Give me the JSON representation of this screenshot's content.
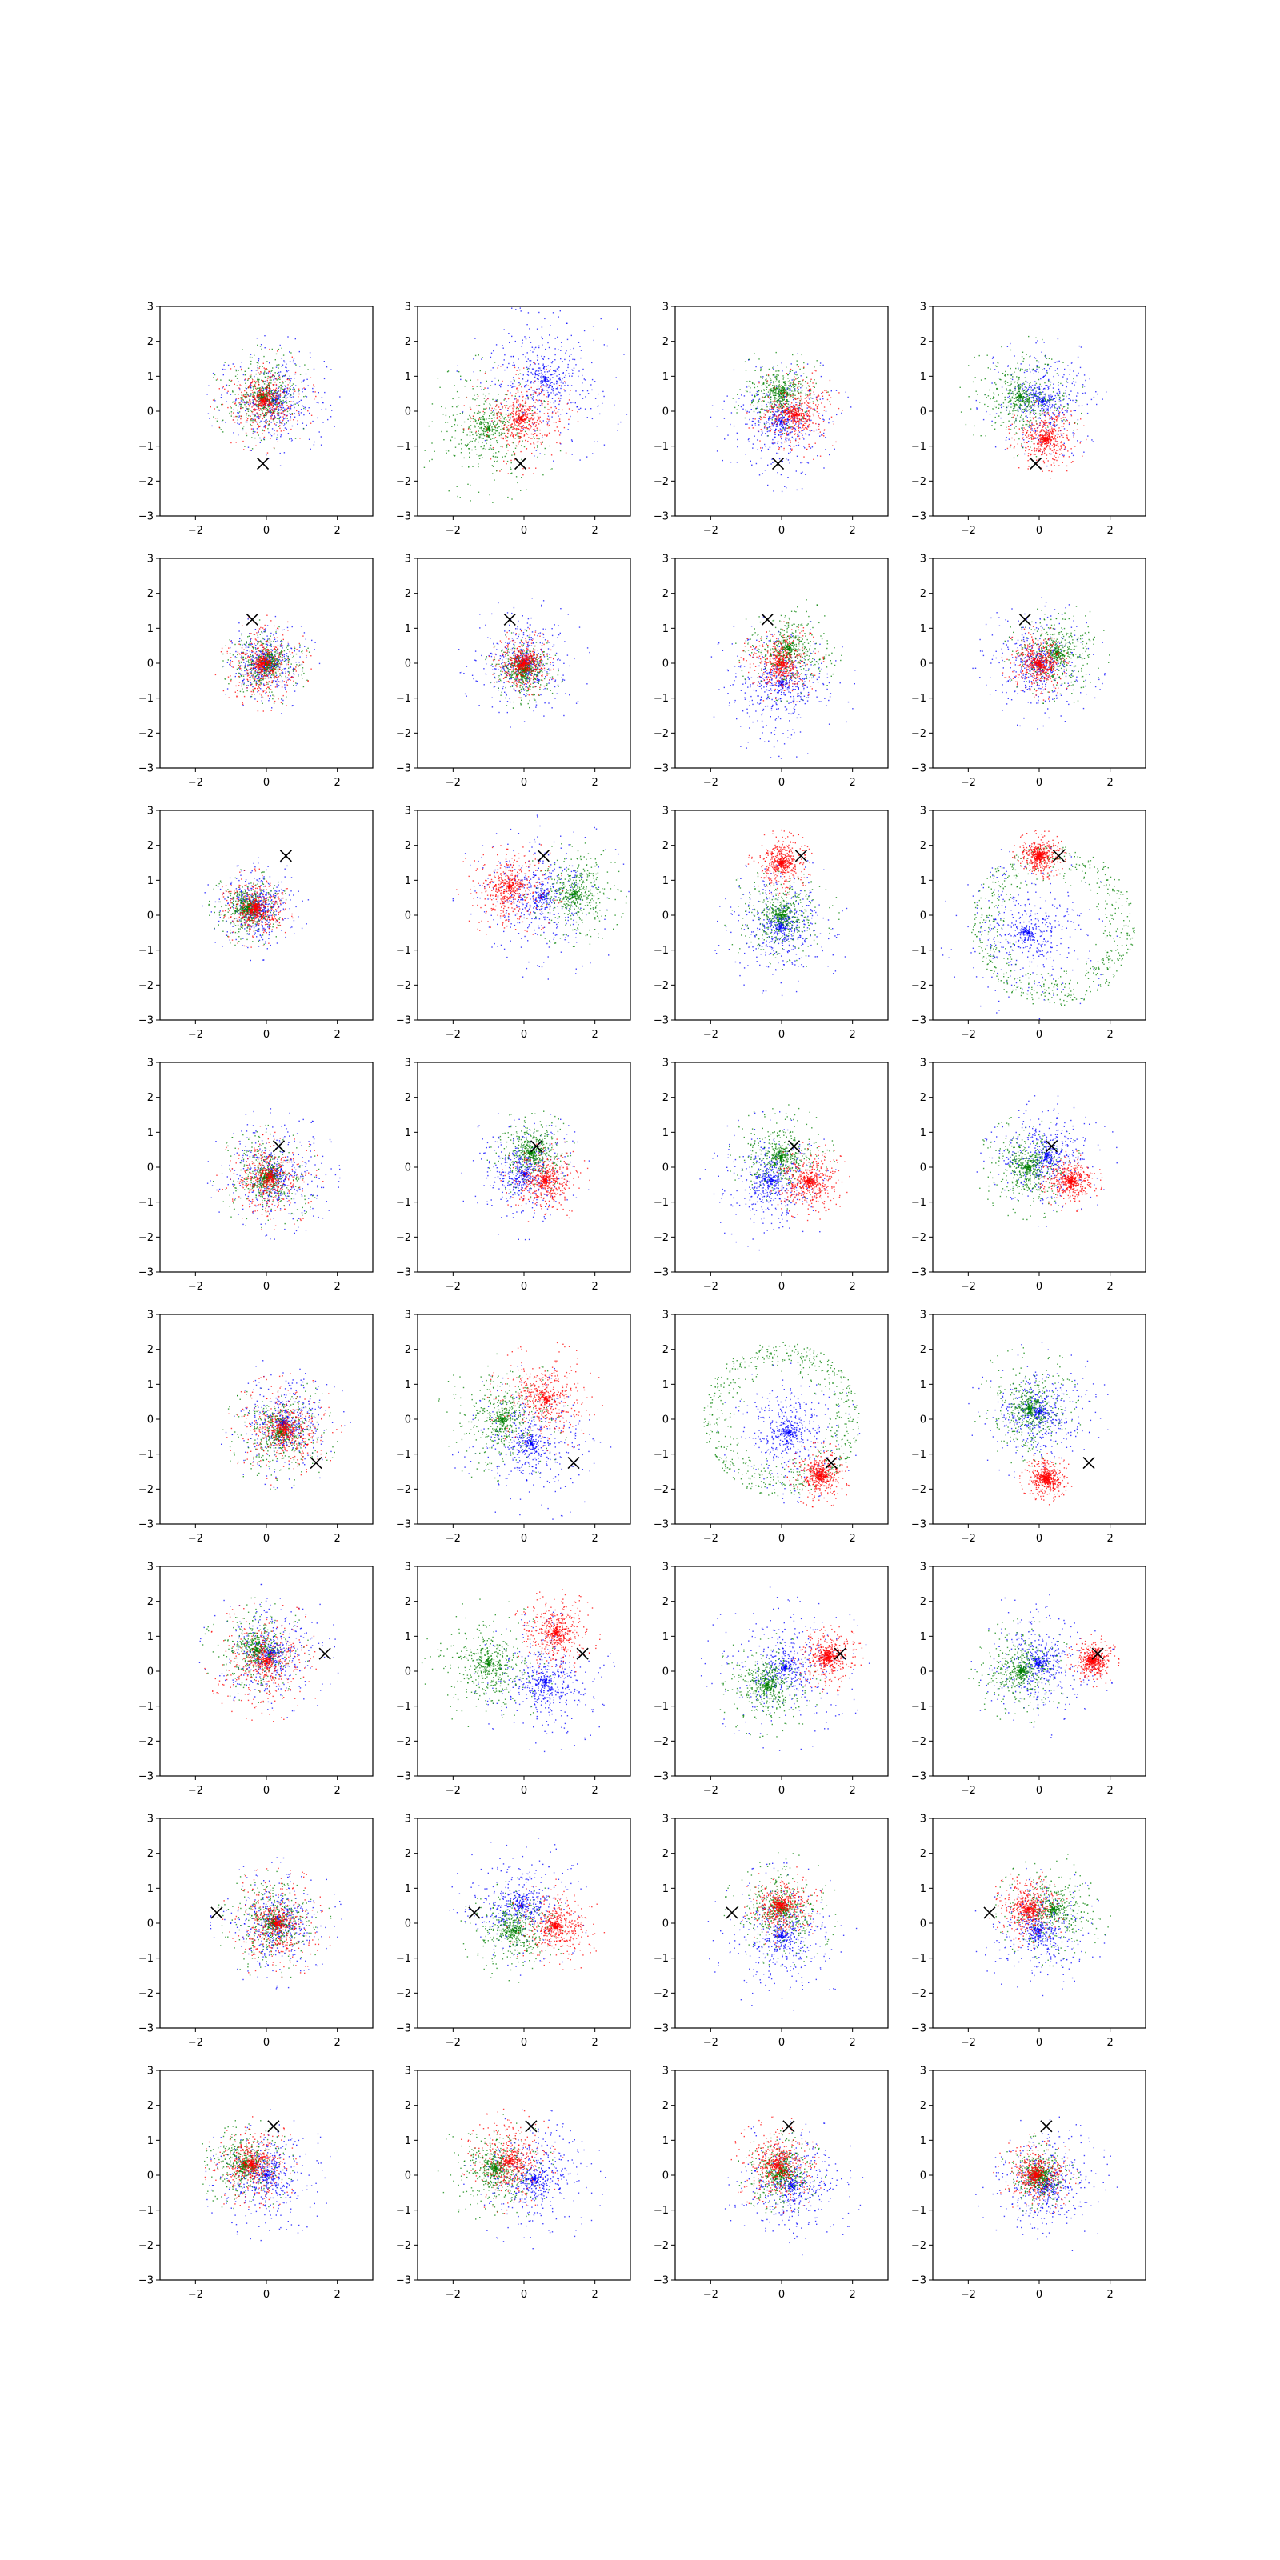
{
  "figure": {
    "rows": 8,
    "cols": 4,
    "background": "#ffffff"
  },
  "chart_data": {
    "type": "scatter",
    "grid": false,
    "legend": "none",
    "xlim": [
      -3,
      3
    ],
    "ylim": [
      -3,
      3
    ],
    "x_ticks": [
      -2,
      0,
      2
    ],
    "y_ticks": [
      -3,
      -2,
      -1,
      0,
      1,
      2,
      3
    ],
    "x_tick_labels": [
      "−2",
      "0",
      "2"
    ],
    "y_tick_labels": [
      "−3",
      "−2",
      "−1",
      "0",
      "1",
      "2",
      "3"
    ],
    "title": "",
    "xlabel": "",
    "ylabel": "",
    "colors": {
      "blue": "#0000ff",
      "green": "#008000",
      "red": "#ff0000",
      "marker": "#000000"
    },
    "marker": {
      "symbol": "x",
      "color": "#000000"
    },
    "markers_by_row": [
      {
        "x": -0.1,
        "y": -1.5
      },
      {
        "x": -0.4,
        "y": 1.25
      },
      {
        "x": 0.55,
        "y": 1.7
      },
      {
        "x": 0.35,
        "y": 0.6
      },
      {
        "x": 1.4,
        "y": -1.25
      },
      {
        "x": 1.65,
        "y": 0.5
      },
      {
        "x": -1.4,
        "y": 0.3
      },
      {
        "x": 0.2,
        "y": 1.4
      }
    ],
    "panels": [
      [
        {
          "blue": {
            "type": "disk",
            "cx": 0.2,
            "cy": 0.3,
            "r": 1.5
          },
          "green": {
            "type": "disk",
            "cx": -0.1,
            "cy": 0.4,
            "r": 1.2
          },
          "red": {
            "type": "disk",
            "cx": -0.1,
            "cy": 0.3,
            "r": 1.2
          }
        },
        {
          "blue": {
            "type": "disk",
            "cx": 0.6,
            "cy": 0.9,
            "r": 2.0
          },
          "green": {
            "type": "disk",
            "cx": -1.0,
            "cy": -0.5,
            "r": 1.7
          },
          "red": {
            "type": "disk",
            "cx": -0.1,
            "cy": -0.2,
            "r": 1.3
          }
        },
        {
          "blue": {
            "type": "disk",
            "cx": 0.0,
            "cy": -0.3,
            "r": 1.6
          },
          "green": {
            "type": "disk",
            "cx": 0.0,
            "cy": 0.5,
            "r": 1.1
          },
          "red": {
            "type": "disk",
            "cx": 0.4,
            "cy": -0.1,
            "r": 1.1
          }
        },
        {
          "blue": {
            "type": "disk",
            "cx": 0.1,
            "cy": 0.3,
            "r": 1.5
          },
          "green": {
            "type": "disk",
            "cx": -0.5,
            "cy": 0.4,
            "r": 1.4
          },
          "red": {
            "type": "disk",
            "cx": 0.2,
            "cy": -0.8,
            "r": 0.9
          }
        }
      ],
      [
        {
          "blue": {
            "type": "disk",
            "cx": 0.0,
            "cy": 0.0,
            "r": 1.2
          },
          "green": {
            "type": "disk",
            "cx": 0.0,
            "cy": 0.0,
            "r": 1.0
          },
          "red": {
            "type": "disk",
            "cx": -0.1,
            "cy": 0.0,
            "r": 1.1
          }
        },
        {
          "blue": {
            "type": "disk",
            "cx": 0.0,
            "cy": 0.0,
            "r": 1.5
          },
          "green": {
            "type": "disk",
            "cx": 0.0,
            "cy": -0.2,
            "r": 0.9
          },
          "red": {
            "type": "disk",
            "cx": 0.0,
            "cy": 0.0,
            "r": 0.8
          }
        },
        {
          "blue": {
            "type": "disk",
            "cx": 0.0,
            "cy": -0.6,
            "r": 1.7
          },
          "green": {
            "type": "disk",
            "cx": 0.2,
            "cy": 0.4,
            "r": 1.2
          },
          "red": {
            "type": "disk",
            "cx": 0.0,
            "cy": 0.0,
            "r": 0.95
          }
        },
        {
          "blue": {
            "type": "disk",
            "cx": 0.0,
            "cy": 0.0,
            "r": 1.5
          },
          "green": {
            "type": "disk",
            "cx": 0.5,
            "cy": 0.3,
            "r": 1.2
          },
          "red": {
            "type": "disk",
            "cx": 0.0,
            "cy": 0.0,
            "r": 0.85
          }
        }
      ],
      [
        {
          "blue": {
            "type": "disk",
            "cx": -0.3,
            "cy": 0.2,
            "r": 1.2
          },
          "green": {
            "type": "disk",
            "cx": -0.5,
            "cy": 0.2,
            "r": 0.9
          },
          "red": {
            "type": "disk",
            "cx": -0.3,
            "cy": 0.2,
            "r": 0.9
          }
        },
        {
          "blue": {
            "type": "disk",
            "cx": 0.5,
            "cy": 0.5,
            "r": 2.0
          },
          "green": {
            "type": "disk",
            "cx": 1.4,
            "cy": 0.6,
            "r": 1.2
          },
          "red": {
            "type": "disk",
            "cx": -0.4,
            "cy": 0.8,
            "r": 1.2
          }
        },
        {
          "blue": {
            "type": "disk",
            "cx": 0.0,
            "cy": -0.3,
            "r": 1.6
          },
          "green": {
            "type": "disk",
            "cx": 0.0,
            "cy": 0.0,
            "r": 1.3
          },
          "red": {
            "type": "disk",
            "cx": 0.0,
            "cy": 1.5,
            "r": 0.75
          }
        },
        {
          "blue": {
            "type": "disk",
            "cx": -0.3,
            "cy": -0.5,
            "r": 2.0
          },
          "green": {
            "type": "ring",
            "cx": 0.4,
            "cy": -0.3,
            "r": 2.2
          },
          "red": {
            "type": "disk",
            "cx": 0.0,
            "cy": 1.7,
            "r": 0.6
          }
        }
      ],
      [
        {
          "blue": {
            "type": "disk",
            "cx": 0.2,
            "cy": -0.2,
            "r": 1.5
          },
          "green": {
            "type": "disk",
            "cx": 0.0,
            "cy": -0.3,
            "r": 1.2
          },
          "red": {
            "type": "disk",
            "cx": 0.1,
            "cy": -0.3,
            "r": 1.2
          }
        },
        {
          "blue": {
            "type": "disk",
            "cx": 0.0,
            "cy": -0.2,
            "r": 1.5
          },
          "green": {
            "type": "disk",
            "cx": 0.2,
            "cy": 0.4,
            "r": 1.0
          },
          "red": {
            "type": "disk",
            "cx": 0.6,
            "cy": -0.4,
            "r": 1.0
          }
        },
        {
          "blue": {
            "type": "disk",
            "cx": -0.3,
            "cy": -0.4,
            "r": 1.6
          },
          "green": {
            "type": "disk",
            "cx": 0.0,
            "cy": 0.3,
            "r": 1.2
          },
          "red": {
            "type": "disk",
            "cx": 0.8,
            "cy": -0.4,
            "r": 0.9
          }
        },
        {
          "blue": {
            "type": "disk",
            "cx": 0.2,
            "cy": 0.3,
            "r": 1.6
          },
          "green": {
            "type": "disk",
            "cx": -0.3,
            "cy": 0.0,
            "r": 1.2
          },
          "red": {
            "type": "disk",
            "cx": 0.9,
            "cy": -0.4,
            "r": 0.7
          }
        }
      ],
      [
        {
          "blue": {
            "type": "disk",
            "cx": 0.5,
            "cy": -0.1,
            "r": 1.5
          },
          "green": {
            "type": "disk",
            "cx": 0.4,
            "cy": -0.4,
            "r": 1.3
          },
          "red": {
            "type": "disk",
            "cx": 0.5,
            "cy": -0.3,
            "r": 1.3
          }
        },
        {
          "blue": {
            "type": "disk",
            "cx": 0.2,
            "cy": -0.7,
            "r": 1.8
          },
          "green": {
            "type": "disk",
            "cx": -0.6,
            "cy": 0.0,
            "r": 1.5
          },
          "red": {
            "type": "disk",
            "cx": 0.6,
            "cy": 0.6,
            "r": 1.3
          }
        },
        {
          "blue": {
            "type": "disk",
            "cx": 0.2,
            "cy": -0.4,
            "r": 1.6
          },
          "green": {
            "type": "ring",
            "cx": 0.0,
            "cy": 0.0,
            "r": 2.1
          },
          "red": {
            "type": "disk",
            "cx": 1.1,
            "cy": -1.6,
            "r": 0.75
          }
        },
        {
          "blue": {
            "type": "disk",
            "cx": 0.0,
            "cy": 0.2,
            "r": 1.6
          },
          "green": {
            "type": "disk",
            "cx": -0.3,
            "cy": 0.3,
            "r": 1.4
          },
          "red": {
            "type": "disk",
            "cx": 0.2,
            "cy": -1.7,
            "r": 0.6
          }
        }
      ],
      [
        {
          "blue": {
            "type": "disk",
            "cx": 0.1,
            "cy": 0.5,
            "r": 1.6
          },
          "green": {
            "type": "disk",
            "cx": -0.3,
            "cy": 0.6,
            "r": 1.2
          },
          "red": {
            "type": "disk",
            "cx": 0.0,
            "cy": 0.3,
            "r": 1.4
          }
        },
        {
          "blue": {
            "type": "disk",
            "cx": 0.6,
            "cy": -0.3,
            "r": 1.6
          },
          "green": {
            "type": "disk",
            "cx": -1.0,
            "cy": 0.2,
            "r": 1.5
          },
          "red": {
            "type": "disk",
            "cx": 0.9,
            "cy": 1.1,
            "r": 1.0
          }
        },
        {
          "blue": {
            "type": "disk",
            "cx": 0.1,
            "cy": 0.1,
            "r": 1.9
          },
          "green": {
            "type": "disk",
            "cx": -0.4,
            "cy": -0.4,
            "r": 1.2
          },
          "red": {
            "type": "disk",
            "cx": 1.3,
            "cy": 0.4,
            "r": 0.8
          }
        },
        {
          "blue": {
            "type": "disk",
            "cx": 0.0,
            "cy": 0.2,
            "r": 1.7
          },
          "green": {
            "type": "disk",
            "cx": -0.5,
            "cy": 0.0,
            "r": 1.2
          },
          "red": {
            "type": "disk",
            "cx": 1.5,
            "cy": 0.3,
            "r": 0.6
          }
        }
      ],
      [
        {
          "blue": {
            "type": "disk",
            "cx": 0.3,
            "cy": 0.0,
            "r": 1.5
          },
          "green": {
            "type": "disk",
            "cx": 0.2,
            "cy": 0.0,
            "r": 1.3
          },
          "red": {
            "type": "disk",
            "cx": 0.3,
            "cy": 0.0,
            "r": 1.3
          }
        },
        {
          "blue": {
            "type": "disk",
            "cx": -0.1,
            "cy": 0.5,
            "r": 1.6
          },
          "green": {
            "type": "disk",
            "cx": -0.3,
            "cy": -0.2,
            "r": 1.2
          },
          "red": {
            "type": "disk",
            "cx": 0.9,
            "cy": -0.1,
            "r": 1.1
          }
        },
        {
          "blue": {
            "type": "disk",
            "cx": 0.0,
            "cy": -0.4,
            "r": 1.7
          },
          "green": {
            "type": "disk",
            "cx": 0.0,
            "cy": 0.4,
            "r": 1.3
          },
          "red": {
            "type": "disk",
            "cx": 0.0,
            "cy": 0.5,
            "r": 0.95
          }
        },
        {
          "blue": {
            "type": "disk",
            "cx": 0.0,
            "cy": -0.2,
            "r": 1.5
          },
          "green": {
            "type": "disk",
            "cx": 0.4,
            "cy": 0.4,
            "r": 1.3
          },
          "red": {
            "type": "disk",
            "cx": -0.3,
            "cy": 0.4,
            "r": 0.9
          }
        }
      ],
      [
        {
          "blue": {
            "type": "disk",
            "cx": 0.0,
            "cy": 0.0,
            "r": 1.5
          },
          "green": {
            "type": "disk",
            "cx": -0.6,
            "cy": 0.3,
            "r": 1.1
          },
          "red": {
            "type": "disk",
            "cx": -0.4,
            "cy": 0.3,
            "r": 1.1
          }
        },
        {
          "blue": {
            "type": "disk",
            "cx": 0.3,
            "cy": -0.1,
            "r": 1.6
          },
          "green": {
            "type": "disk",
            "cx": -0.8,
            "cy": 0.2,
            "r": 1.3
          },
          "red": {
            "type": "disk",
            "cx": -0.4,
            "cy": 0.4,
            "r": 1.2
          }
        },
        {
          "blue": {
            "type": "disk",
            "cx": 0.3,
            "cy": -0.3,
            "r": 1.6
          },
          "green": {
            "type": "disk",
            "cx": 0.0,
            "cy": 0.1,
            "r": 1.0
          },
          "red": {
            "type": "disk",
            "cx": -0.1,
            "cy": 0.3,
            "r": 1.1
          }
        },
        {
          "blue": {
            "type": "disk",
            "cx": 0.2,
            "cy": -0.3,
            "r": 1.6
          },
          "green": {
            "type": "disk",
            "cx": 0.0,
            "cy": 0.0,
            "r": 0.9
          },
          "red": {
            "type": "disk",
            "cx": -0.1,
            "cy": 0.0,
            "r": 0.95
          }
        }
      ]
    ]
  }
}
